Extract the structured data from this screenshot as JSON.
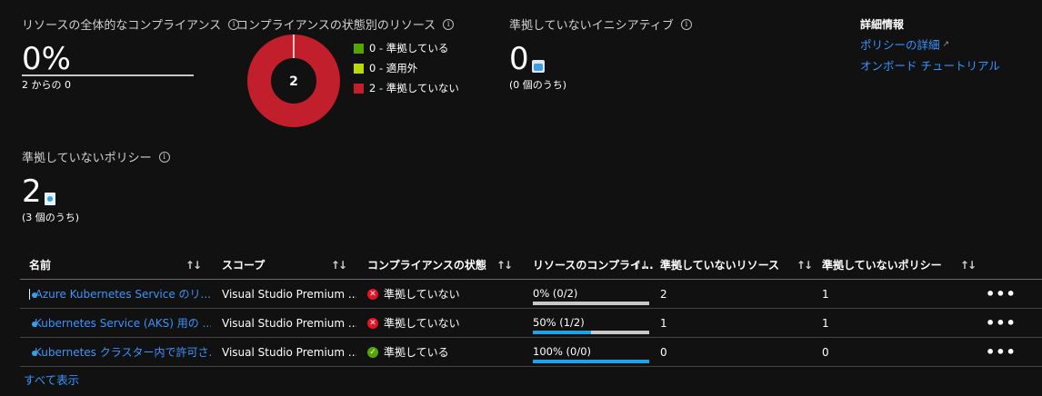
{
  "cards": {
    "overall": {
      "label": "リソースの全体的なコンプライアンス",
      "value": "0%",
      "sub": "2 からの 0",
      "compliant_fraction": 0
    },
    "by_state": {
      "label": "コンプライアンスの状態別のリソース",
      "donut_center": "2",
      "legend": [
        {
          "label": "0 - 準拠している",
          "count": 0,
          "color": "#57a300"
        },
        {
          "label": "0 - 適用外",
          "count": 0,
          "color": "#bad80a"
        },
        {
          "label": "2 - 準拠していない",
          "count": 2,
          "color": "#c01f2b"
        }
      ]
    },
    "initiatives": {
      "label": "準拠していないイニシアティブ",
      "value": "0",
      "sub": "(0 個のうち)"
    },
    "policies": {
      "label": "準拠していないポリシー",
      "value": "2",
      "sub": "(3 個のうち)"
    }
  },
  "details": {
    "title": "詳細情報",
    "links": [
      "ポリシーの詳細",
      "オンボード チュートリアル"
    ]
  },
  "table": {
    "headers": [
      "名前",
      "スコープ",
      "コンプライアンスの状態",
      "リソースのコンプライ...",
      "準拠していないリソース",
      "準拠していないポリシー"
    ],
    "sort_glyph": "↑↓",
    "rows": [
      {
        "name": "Azure Kubernetes Service のリ...",
        "scope": "Visual Studio Premium ...",
        "state": "準拠していない",
        "state_ok": false,
        "compliance": "0% (0/2)",
        "fill": 0,
        "nc_resources": "2",
        "nc_policies": "1"
      },
      {
        "name": "Kubernetes Service (AKS) 用の ...",
        "scope": "Visual Studio Premium ...",
        "state": "準拠していない",
        "state_ok": false,
        "compliance": "50% (1/2)",
        "fill": 0.5,
        "nc_resources": "1",
        "nc_policies": "1"
      },
      {
        "name": "Kubernetes クラスター内で許可さ...",
        "scope": "Visual Studio Premium ...",
        "state": "準拠している",
        "state_ok": true,
        "compliance": "100% (0/0)",
        "fill": 1,
        "nc_resources": "0",
        "nc_policies": "0"
      }
    ],
    "more_glyph": "•••",
    "show_all": "すべて表示"
  }
}
